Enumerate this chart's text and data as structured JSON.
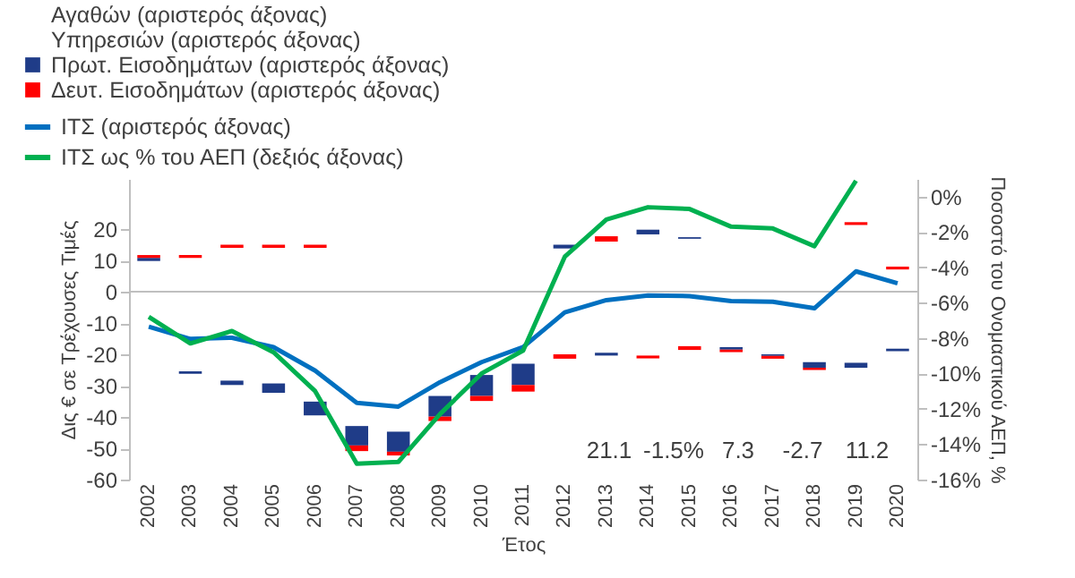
{
  "chart_data": {
    "type": "bar",
    "xlabel": "Έτος",
    "ylabel": "Δις € σε Τρέχουσες Τιμές",
    "y2label": "Ποσοστό του Ονομαστικού ΑΕΠ, %",
    "categories": [
      "2002",
      "2003",
      "2004",
      "2005",
      "2006",
      "2007",
      "2008",
      "2009",
      "2010",
      "2011",
      "2012",
      "2013",
      "2014",
      "2015",
      "2016",
      "2017",
      "2018",
      "2019",
      "2020"
    ],
    "ylim": [
      -60,
      36
    ],
    "yticks": [
      -60,
      -50,
      -40,
      -30,
      -20,
      -10,
      0,
      10,
      20
    ],
    "y2lim": [
      -16,
      1
    ],
    "y2ticks": [
      {
        "value": -16,
        "label": "-16%"
      },
      {
        "value": -14,
        "label": "-14%"
      },
      {
        "value": -12,
        "label": "-12%"
      },
      {
        "value": -10,
        "label": "-10%"
      },
      {
        "value": -8,
        "label": "-8%"
      },
      {
        "value": -6,
        "label": "-6%"
      },
      {
        "value": -4,
        "label": "-4%"
      },
      {
        "value": -2,
        "label": "-2%"
      },
      {
        "value": 0,
        "label": "0%"
      }
    ],
    "legend": "top left",
    "grid": false,
    "marker": "none",
    "ref_lines": [
      {
        "axis": "y",
        "value": 0,
        "color": "#bfbfbf"
      }
    ],
    "annotations": [
      "21.1",
      "-1.5%",
      "7.3",
      "-2.7",
      "11.2"
    ],
    "series": [
      {
        "name": "Αγαθών (αριστερός άξονας)",
        "type": "bar",
        "values": [
          null,
          null,
          null,
          null,
          null,
          null,
          null,
          null,
          null,
          null,
          null,
          null,
          null,
          null,
          null,
          null,
          null,
          null,
          null
        ]
      },
      {
        "name": "Υπηρεσιών (αριστερός άξονας)",
        "type": "bar",
        "values": [
          null,
          null,
          null,
          null,
          null,
          null,
          null,
          null,
          null,
          null,
          null,
          null,
          null,
          null,
          null,
          null,
          null,
          null,
          null
        ]
      },
      {
        "name": "Πρωτ. Εισοδημάτων (αριστερός άξονας)",
        "type": "bar",
        "color": "#1f3c88",
        "base": [
          9.8,
          -26.2,
          -29.8,
          -32.3,
          -39.5,
          -49.1,
          -51.1,
          -39.9,
          -33.3,
          -29.8,
          13.8,
          -20.4,
          18.3,
          16.9,
          -18.5,
          -20.5,
          -24.3,
          -24.3,
          -19.0
        ],
        "values": [
          1.0,
          0.8,
          1.4,
          3.0,
          4.4,
          6.2,
          6.4,
          6.6,
          6.7,
          6.8,
          1.2,
          0.9,
          1.5,
          0.5,
          0.8,
          0.5,
          1.8,
          1.6,
          0.8
        ]
      },
      {
        "name": "Δευτ. Εισοδημάτων (αριστερός άξονας)",
        "type": "bar",
        "color": "#ff0000",
        "base": [
          10.8,
          10.8,
          14.0,
          14.0,
          14.0,
          -50.9,
          -52.3,
          -41.3,
          -34.9,
          -31.9,
          -21.4,
          16.0,
          -21.3,
          -18.6,
          -19.3,
          -21.4,
          -25.0,
          21.3,
          7.1
        ],
        "values": [
          0.9,
          0.9,
          1.0,
          1.0,
          1.0,
          1.8,
          1.2,
          1.4,
          1.6,
          2.1,
          1.4,
          1.7,
          0.9,
          1.2,
          0.8,
          0.9,
          0.7,
          0.9,
          0.9
        ]
      },
      {
        "name": "ΙΤΣ (αριστερός άξονας)",
        "type": "line",
        "color": "#0070c0",
        "values": [
          -11.2,
          -15.1,
          -14.7,
          -17.7,
          -25.2,
          -35.5,
          -36.7,
          -28.9,
          -22.5,
          -17.7,
          -6.6,
          -2.7,
          -1.2,
          -1.4,
          -3.0,
          -3.2,
          -5.3,
          6.5,
          2.7
        ]
      },
      {
        "name": "ΙΤΣ ως % του ΑΕΠ (δεξιός άξονας)",
        "type": "line",
        "axis": "y2",
        "color": "#00b050",
        "values": [
          -6.8,
          -8.3,
          -7.6,
          -8.8,
          -11.0,
          -15.1,
          -15.0,
          -12.3,
          -10.0,
          -8.7,
          -3.4,
          -1.3,
          -0.6,
          -0.7,
          -1.7,
          -1.8,
          -2.8,
          0.9,
          null
        ]
      }
    ]
  }
}
